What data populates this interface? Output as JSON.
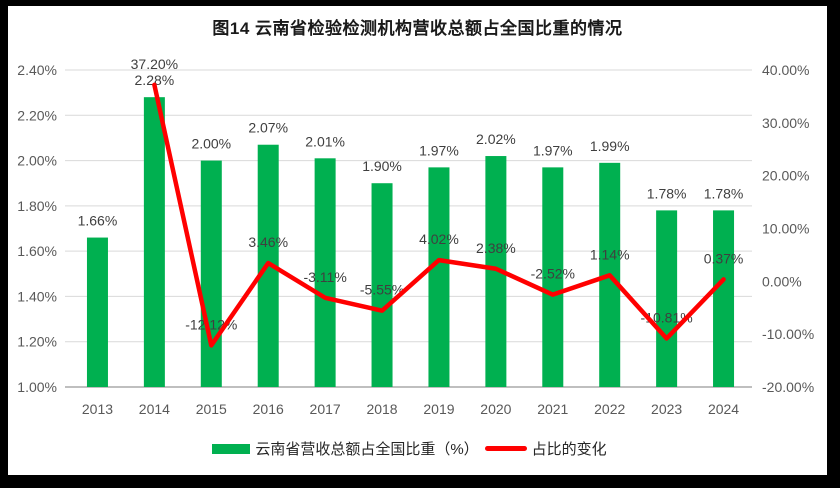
{
  "colors": {
    "bar": "#00B050",
    "line": "#FF0000",
    "grid": "#D9D9D9",
    "axis_line": "#BFBFBF",
    "tick_text": "#595959",
    "label_text": "#3F3F3F",
    "title_text": "#1A1A1A",
    "background": "#FFFFFF",
    "frame": "#000000"
  },
  "chart_data": {
    "type": "bar+line",
    "title": "图14 云南省检验检测机构营收总额占全国比重的情况",
    "categories": [
      "2013",
      "2014",
      "2015",
      "2016",
      "2017",
      "2018",
      "2019",
      "2020",
      "2021",
      "2022",
      "2023",
      "2024"
    ],
    "series": [
      {
        "name": "云南省营收总额占全国比重（%）",
        "type": "bar",
        "axis": "left",
        "values": [
          1.66,
          2.28,
          2.0,
          2.07,
          2.01,
          1.9,
          1.97,
          2.02,
          1.97,
          1.99,
          1.78,
          1.78
        ],
        "labels": [
          "1.66%",
          "2.28%",
          "2.00%",
          "2.07%",
          "2.01%",
          "1.90%",
          "1.97%",
          "2.02%",
          "1.97%",
          "1.99%",
          "1.78%",
          "1.78%"
        ]
      },
      {
        "name": "占比的变化",
        "type": "line",
        "axis": "right",
        "values": [
          null,
          37.2,
          -12.12,
          3.46,
          -3.11,
          -5.55,
          4.02,
          2.38,
          -2.52,
          1.14,
          -10.81,
          0.37
        ],
        "labels": [
          null,
          "37.20%",
          "-12.12%",
          "3.46%",
          "-3.11%",
          "-5.55%",
          "4.02%",
          "2.38%",
          "-2.52%",
          "1.14%",
          "-10.81%",
          "0.37%"
        ]
      }
    ],
    "left_axis": {
      "min": 1.0,
      "max": 2.4,
      "step": 0.2,
      "tick_labels": [
        "2.40%",
        "2.20%",
        "2.00%",
        "1.80%",
        "1.60%",
        "1.40%",
        "1.20%",
        "1.00%"
      ]
    },
    "right_axis": {
      "min": -20,
      "max": 40,
      "step": 10,
      "tick_labels": [
        "40.00%",
        "30.00%",
        "20.00%",
        "10.00%",
        "0.00%",
        "-10.00%",
        "-20.00%"
      ]
    },
    "grid": true,
    "legend_position": "bottom"
  }
}
